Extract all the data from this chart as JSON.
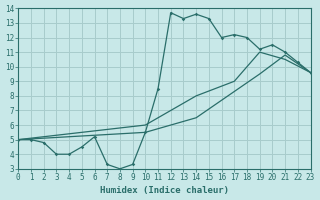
{
  "xlabel": "Humidex (Indice chaleur)",
  "bg_color": "#c8e8e8",
  "grid_color": "#a8cccc",
  "line_color": "#2a6e6a",
  "xlim": [
    0,
    23
  ],
  "ylim": [
    3,
    14
  ],
  "xticks": [
    0,
    1,
    2,
    3,
    4,
    5,
    6,
    7,
    8,
    9,
    10,
    11,
    12,
    13,
    14,
    15,
    16,
    17,
    18,
    19,
    20,
    21,
    22,
    23
  ],
  "yticks": [
    3,
    4,
    5,
    6,
    7,
    8,
    9,
    10,
    11,
    12,
    13,
    14
  ],
  "line1_x": [
    0,
    1,
    2,
    3,
    4,
    5,
    6,
    7,
    8,
    9,
    10,
    11,
    12,
    13,
    14,
    15,
    16,
    17,
    18,
    19,
    20,
    21,
    22,
    23
  ],
  "line1_y": [
    5,
    5,
    4.8,
    4.0,
    4.0,
    4.5,
    5.2,
    3.3,
    3.0,
    3.3,
    5.5,
    8.5,
    13.7,
    13.3,
    13.6,
    13.3,
    12.0,
    12.2,
    12.0,
    11.2,
    11.5,
    11.0,
    10.3,
    9.6
  ],
  "line2_x": [
    0,
    10,
    14,
    19,
    21,
    23
  ],
  "line2_y": [
    5,
    5.5,
    6.5,
    9.5,
    10.8,
    9.6
  ],
  "line3_x": [
    0,
    10,
    14,
    17,
    19,
    21,
    23
  ],
  "line3_y": [
    5,
    6.0,
    8.0,
    9.0,
    11.0,
    10.5,
    9.6
  ]
}
